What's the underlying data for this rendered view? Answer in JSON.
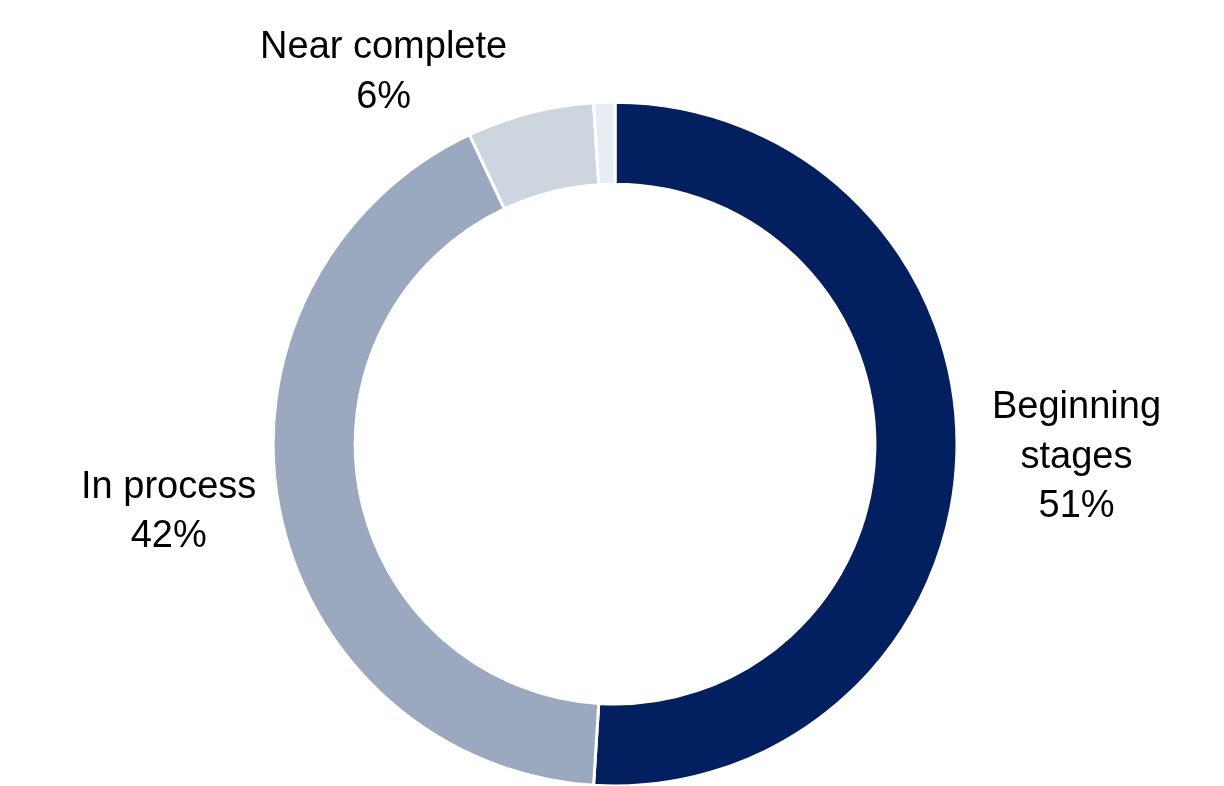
{
  "chart_data": {
    "type": "donut",
    "categories": [
      "Beginning stages",
      "In process",
      "Near complete",
      null
    ],
    "values": [
      51,
      42,
      6,
      1
    ],
    "value_labels": [
      "51%",
      "42%",
      "6%",
      null
    ],
    "colors": [
      "#02205f",
      "#9aa9bf",
      "#cdd5df",
      "#e8ecf3"
    ],
    "legend": false
  }
}
